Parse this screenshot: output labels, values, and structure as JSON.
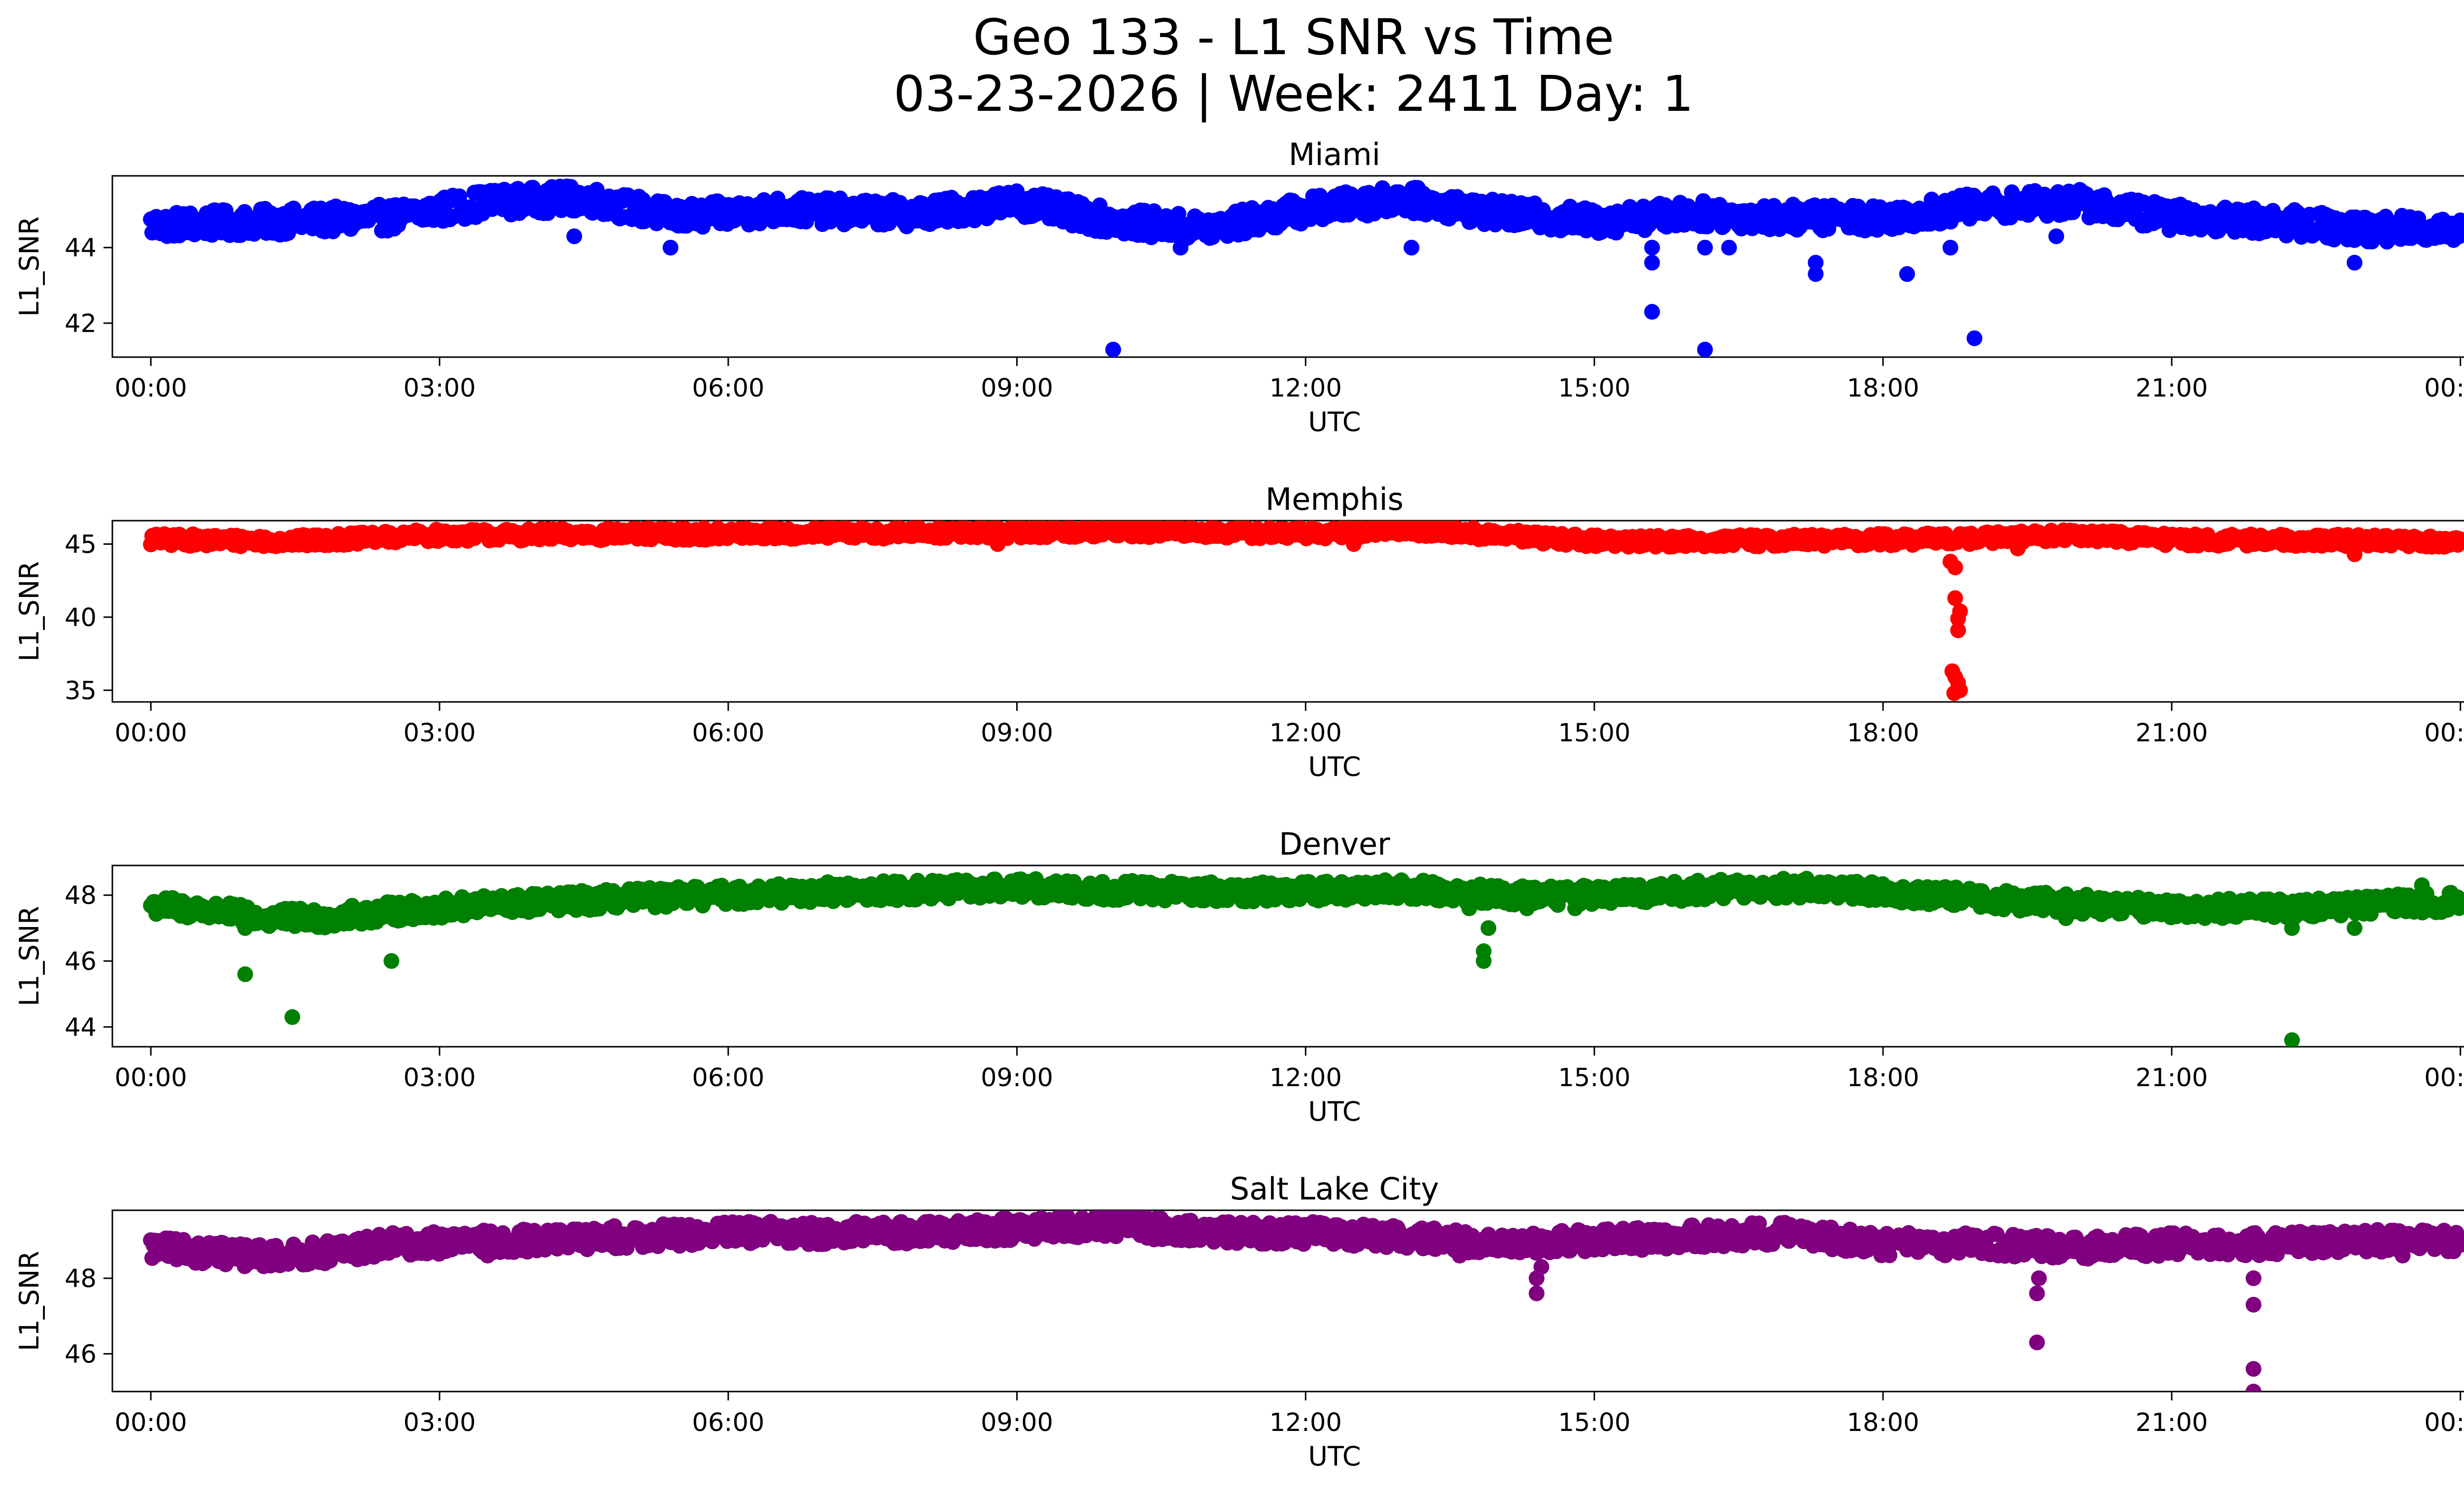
{
  "chart_data": {
    "type": "scatter",
    "title": "Geo 133 - L1 SNR vs Time",
    "subtitle": "03-23-2026 | Week: 2411 Day: 1",
    "xlabel": "UTC",
    "ylabel": "L1_SNR",
    "xlim_hours": [
      -0.4,
      25.0
    ],
    "xticks": [
      {
        "hour": 0,
        "label": "00:00"
      },
      {
        "hour": 3,
        "label": "03:00"
      },
      {
        "hour": 6,
        "label": "06:00"
      },
      {
        "hour": 9,
        "label": "09:00"
      },
      {
        "hour": 12,
        "label": "12:00"
      },
      {
        "hour": 15,
        "label": "15:00"
      },
      {
        "hour": 18,
        "label": "18:00"
      },
      {
        "hour": 21,
        "label": "21:00"
      },
      {
        "hour": 24,
        "label": "00:00"
      }
    ],
    "panels": [
      {
        "name": "Miami",
        "color": "#0000ff",
        "ylim": [
          41.1,
          45.9
        ],
        "yticks": [
          42,
          44
        ],
        "baseline": [
          [
            0,
            44.6
          ],
          [
            1.5,
            44.7
          ],
          [
            2.5,
            44.8
          ],
          [
            3.5,
            45.2
          ],
          [
            4.5,
            45.3
          ],
          [
            5.5,
            44.8
          ],
          [
            6.5,
            45.0
          ],
          [
            8,
            44.9
          ],
          [
            9,
            45.2
          ],
          [
            10,
            44.7
          ],
          [
            11,
            44.5
          ],
          [
            12,
            45.0
          ],
          [
            13,
            45.3
          ],
          [
            14,
            44.9
          ],
          [
            15,
            44.7
          ],
          [
            16,
            44.9
          ],
          [
            17,
            44.8
          ],
          [
            18,
            44.8
          ],
          [
            19,
            45.1
          ],
          [
            20,
            45.2
          ],
          [
            21,
            44.8
          ],
          [
            22,
            44.7
          ],
          [
            23,
            44.5
          ],
          [
            24,
            44.5
          ]
        ],
        "spread": 0.7,
        "outliers": [
          [
            4.4,
            44.3
          ],
          [
            5.4,
            44.0
          ],
          [
            10.0,
            41.3
          ],
          [
            10.7,
            44.0
          ],
          [
            13.1,
            44.0
          ],
          [
            15.6,
            42.3
          ],
          [
            15.6,
            43.6
          ],
          [
            15.6,
            44.0
          ],
          [
            16.15,
            41.3
          ],
          [
            16.15,
            44.0
          ],
          [
            16.4,
            44.0
          ],
          [
            17.3,
            43.3
          ],
          [
            17.3,
            43.6
          ],
          [
            18.25,
            43.3
          ],
          [
            18.7,
            44.0
          ],
          [
            18.95,
            41.6
          ],
          [
            19.8,
            44.3
          ],
          [
            22.9,
            43.6
          ]
        ]
      },
      {
        "name": "Memphis",
        "color": "#ff0000",
        "ylim": [
          34.2,
          46.6
        ],
        "yticks": [
          35,
          40,
          45
        ],
        "baseline": [
          [
            0,
            45.3
          ],
          [
            1.5,
            45.2
          ],
          [
            3,
            45.6
          ],
          [
            6,
            45.7
          ],
          [
            9,
            45.8
          ],
          [
            10,
            45.9
          ],
          [
            12,
            45.7
          ],
          [
            13,
            46.0
          ],
          [
            14,
            45.6
          ],
          [
            15,
            45.2
          ],
          [
            16,
            45.2
          ],
          [
            18,
            45.3
          ],
          [
            19,
            45.4
          ],
          [
            20,
            45.6
          ],
          [
            21,
            45.3
          ],
          [
            24,
            45.2
          ]
        ],
        "spread": 0.8,
        "outliers": [
          [
            8.8,
            45.0
          ],
          [
            12.5,
            45.0
          ],
          [
            18.7,
            43.8
          ],
          [
            18.75,
            43.4
          ],
          [
            18.75,
            41.3
          ],
          [
            18.78,
            39.9
          ],
          [
            18.78,
            39.1
          ],
          [
            18.8,
            40.4
          ],
          [
            18.72,
            36.3
          ],
          [
            18.75,
            35.9
          ],
          [
            18.78,
            35.5
          ],
          [
            18.8,
            35.0
          ],
          [
            18.74,
            34.8
          ],
          [
            19.4,
            44.7
          ],
          [
            22.9,
            44.3
          ]
        ]
      },
      {
        "name": "Denver",
        "color": "#008000",
        "ylim": [
          43.4,
          48.9
        ],
        "yticks": [
          44,
          46,
          48
        ],
        "baseline": [
          [
            0,
            47.7
          ],
          [
            0.7,
            47.5
          ],
          [
            1.2,
            47.3
          ],
          [
            1.8,
            47.3
          ],
          [
            2.5,
            47.5
          ],
          [
            3.5,
            47.7
          ],
          [
            5,
            47.9
          ],
          [
            7,
            48.1
          ],
          [
            9,
            48.2
          ],
          [
            11,
            48.1
          ],
          [
            12,
            48.1
          ],
          [
            13,
            48.2
          ],
          [
            14,
            48.0
          ],
          [
            15,
            48.0
          ],
          [
            16.5,
            48.2
          ],
          [
            17.5,
            48.2
          ],
          [
            18.5,
            48.0
          ],
          [
            19.5,
            47.8
          ],
          [
            21,
            47.6
          ],
          [
            22,
            47.6
          ],
          [
            23,
            47.7
          ],
          [
            24,
            47.8
          ]
        ],
        "spread": 0.6,
        "outliers": [
          [
            0.98,
            45.6
          ],
          [
            0.98,
            47.0
          ],
          [
            1.47,
            44.3
          ],
          [
            2.5,
            46.0
          ],
          [
            13.85,
            46.0
          ],
          [
            13.85,
            46.3
          ],
          [
            13.9,
            47.0
          ],
          [
            13.7,
            47.6
          ],
          [
            14.3,
            47.6
          ],
          [
            14.8,
            47.6
          ],
          [
            19.9,
            47.3
          ],
          [
            22.25,
            43.6
          ],
          [
            22.25,
            47.0
          ],
          [
            22.9,
            47.0
          ],
          [
            23.6,
            48.3
          ]
        ]
      },
      {
        "name": "Salt Lake City",
        "color": "#800080",
        "ylim": [
          45.0,
          49.8
        ],
        "yticks": [
          46,
          48
        ],
        "baseline": [
          [
            0,
            48.8
          ],
          [
            1,
            48.6
          ],
          [
            1.5,
            48.6
          ],
          [
            2.5,
            48.9
          ],
          [
            4,
            49.0
          ],
          [
            6,
            49.2
          ],
          [
            8,
            49.2
          ],
          [
            9,
            49.3
          ],
          [
            10,
            49.4
          ],
          [
            11,
            49.2
          ],
          [
            12,
            49.2
          ],
          [
            13,
            49.1
          ],
          [
            14,
            48.9
          ],
          [
            15,
            49.0
          ],
          [
            16,
            49.1
          ],
          [
            17,
            49.2
          ],
          [
            18,
            48.9
          ],
          [
            19,
            48.9
          ],
          [
            20,
            48.8
          ],
          [
            21,
            48.9
          ],
          [
            22,
            48.9
          ],
          [
            23,
            49.0
          ],
          [
            24,
            49.0
          ]
        ],
        "spread": 0.6,
        "outliers": [
          [
            14.4,
            47.6
          ],
          [
            14.4,
            48.0
          ],
          [
            14.45,
            48.3
          ],
          [
            19.6,
            46.3
          ],
          [
            19.6,
            47.6
          ],
          [
            19.62,
            48.0
          ],
          [
            21.85,
            45.0
          ],
          [
            21.85,
            45.6
          ],
          [
            21.85,
            47.3
          ],
          [
            21.85,
            48.0
          ],
          [
            13.6,
            48.6
          ],
          [
            3.5,
            48.6
          ],
          [
            23.4,
            48.6
          ]
        ]
      }
    ]
  }
}
